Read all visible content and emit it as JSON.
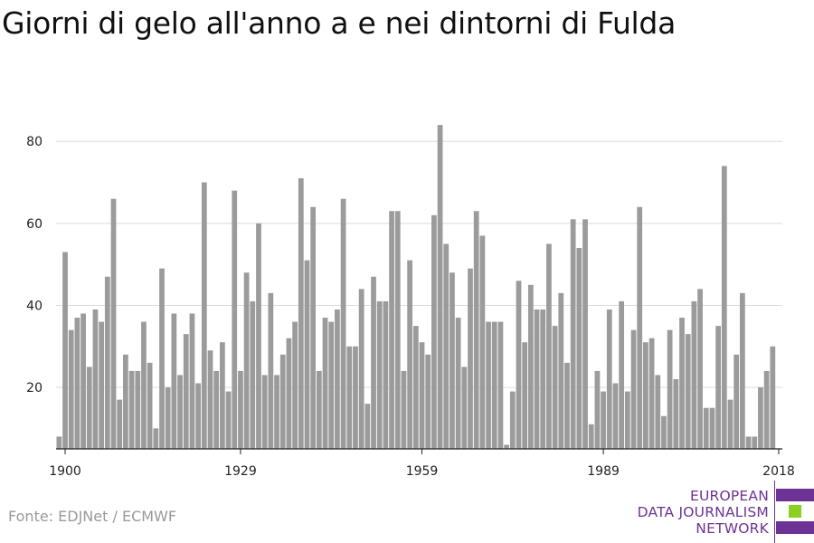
{
  "title": "Giorni di gelo all'anno a e nei dintorni di Fulda",
  "source": "Fonte: EDJNet / ECMWF",
  "logo": {
    "lines": [
      "EUROPEAN",
      "DATA JOURNALISM",
      "NETWORK"
    ],
    "colors": {
      "purple": "#6c3394",
      "green": "#8ccf1f"
    }
  },
  "chart_data": {
    "type": "bar",
    "title": "Giorni di gelo all'anno a e nei dintorni di Fulda",
    "xlabel": "",
    "ylabel": "",
    "x_start": 1899,
    "x_ticks": [
      1900,
      1929,
      1959,
      1989,
      2018
    ],
    "y_ticks": [
      20,
      40,
      60,
      80
    ],
    "ylim": [
      5,
      88
    ],
    "xlim": [
      1898.5,
      2018.6
    ],
    "grid": true,
    "bar_color": "#9b9b9b",
    "values": [
      8,
      53,
      34,
      37,
      38,
      25,
      39,
      36,
      47,
      66,
      17,
      28,
      24,
      24,
      36,
      26,
      10,
      49,
      20,
      38,
      23,
      33,
      38,
      21,
      70,
      29,
      24,
      31,
      19,
      68,
      24,
      48,
      41,
      60,
      23,
      43,
      23,
      28,
      32,
      36,
      71,
      51,
      64,
      24,
      37,
      36,
      39,
      66,
      30,
      30,
      44,
      16,
      47,
      41,
      41,
      63,
      63,
      24,
      51,
      35,
      31,
      28,
      62,
      84,
      55,
      48,
      37,
      25,
      49,
      63,
      57,
      36,
      36,
      36,
      6,
      19,
      46,
      31,
      45,
      39,
      39,
      55,
      35,
      43,
      26,
      61,
      54,
      61,
      11,
      24,
      19,
      39,
      21,
      41,
      19,
      34,
      64,
      31,
      32,
      23,
      13,
      34,
      22,
      37,
      33,
      41,
      44,
      15,
      15,
      35,
      74,
      17,
      28,
      43,
      8,
      8,
      20,
      24,
      30
    ]
  }
}
